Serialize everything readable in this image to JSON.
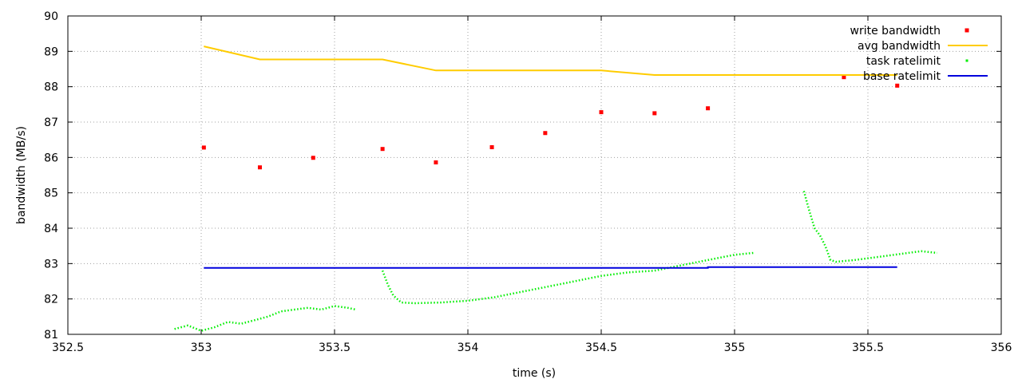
{
  "chart_data": {
    "type": "scatter",
    "xlabel": "time (s)",
    "ylabel": "bandwidth (MB/s)",
    "xlim": [
      352.5,
      356
    ],
    "ylim": [
      81,
      90
    ],
    "xticks": [
      "352.5",
      "353",
      "353.5",
      "354",
      "354.5",
      "355",
      "355.5",
      "356"
    ],
    "yticks": [
      "81",
      "82",
      "83",
      "84",
      "85",
      "86",
      "87",
      "88",
      "89",
      "90"
    ],
    "grid": true,
    "legend_position": "top-right",
    "series": [
      {
        "name": "write bandwidth",
        "kind": "points",
        "color": "#ff0000",
        "x": [
          353.01,
          353.22,
          353.42,
          353.68,
          353.88,
          354.09,
          354.29,
          354.5,
          354.7,
          354.9,
          355.41,
          355.61
        ],
        "y": [
          86.28,
          85.72,
          85.99,
          86.24,
          85.86,
          86.29,
          86.69,
          87.28,
          87.25,
          87.39,
          88.27,
          88.03
        ]
      },
      {
        "name": "avg bandwidth",
        "kind": "line",
        "color": "#ffcc00",
        "x": [
          353.01,
          353.22,
          353.68,
          353.88,
          354.5,
          354.7,
          355.61
        ],
        "y": [
          89.14,
          88.77,
          88.77,
          88.46,
          88.46,
          88.33,
          88.33
        ]
      },
      {
        "name": "task ratelimit",
        "kind": "dots",
        "color": "#00ee00",
        "segments": [
          {
            "x": [
              352.9,
              352.95,
              353.0,
              353.05,
              353.1,
              353.15,
              353.2,
              353.25,
              353.3,
              353.35,
              353.4,
              353.45,
              353.5,
              353.55,
              353.58
            ],
            "y": [
              81.15,
              81.25,
              81.1,
              81.2,
              81.35,
              81.3,
              81.4,
              81.5,
              81.65,
              81.7,
              81.75,
              81.7,
              81.8,
              81.75,
              81.7
            ]
          },
          {
            "x": [
              353.68,
              353.7,
              353.72,
              353.75,
              353.8,
              353.9,
              354.0,
              354.1,
              354.2,
              354.3,
              354.4,
              354.5,
              354.6,
              354.7,
              354.8,
              354.9,
              355.0,
              355.07
            ],
            "y": [
              82.8,
              82.4,
              82.1,
              81.9,
              81.88,
              81.9,
              81.95,
              82.05,
              82.2,
              82.35,
              82.5,
              82.65,
              82.75,
              82.8,
              82.95,
              83.1,
              83.25,
              83.3
            ]
          },
          {
            "x": [
              355.26,
              355.28,
              355.3,
              355.32,
              355.34,
              355.36,
              355.38,
              355.45,
              355.55,
              355.65,
              355.7,
              355.76
            ],
            "y": [
              85.05,
              84.5,
              84.0,
              83.8,
              83.5,
              83.1,
              83.05,
              83.1,
              83.2,
              83.3,
              83.35,
              83.3
            ]
          }
        ]
      },
      {
        "name": "base ratelimit",
        "kind": "line",
        "color": "#0000dd",
        "x": [
          353.01,
          354.9,
          354.9,
          355.61
        ],
        "y": [
          82.88,
          82.88,
          82.9,
          82.9
        ]
      }
    ]
  }
}
